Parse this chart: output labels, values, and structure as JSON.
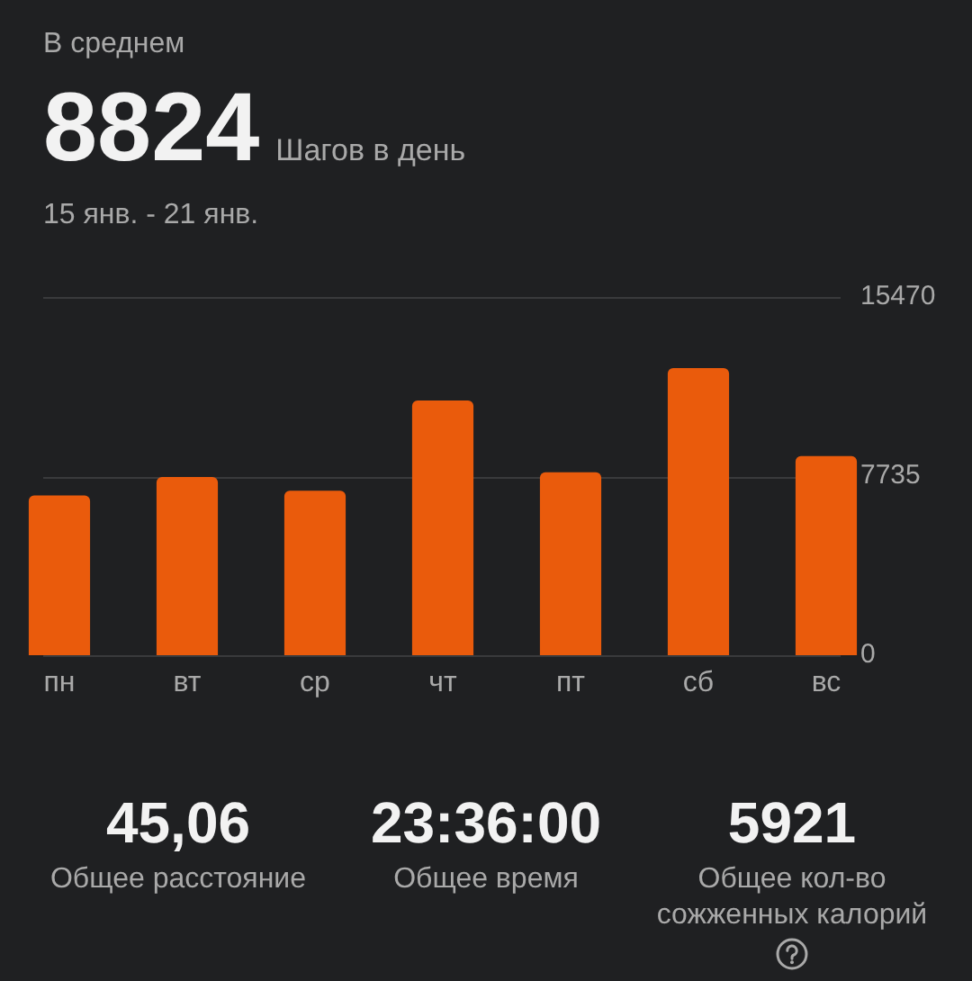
{
  "chart_data": {
    "type": "bar",
    "title": "В среднем",
    "subtitle": "15 янв. - 21 янв.",
    "annotations": [
      "8824",
      "Шагов в день",
      "45,06",
      "Общее расстояние",
      "23:36:00",
      "Общее время",
      "5921",
      "Общее кол-во сожженных калорий"
    ],
    "categories": [
      "пн",
      "вт",
      "ср",
      "чт",
      "пт",
      "сб",
      "вс"
    ],
    "values": [
      6900,
      7700,
      7100,
      11000,
      7900,
      12400,
      8600
    ],
    "color": "#ea5b0c",
    "ylim": [
      0,
      15470
    ],
    "yticks": [
      0,
      7735,
      15470
    ],
    "grid": "y",
    "legend": false
  }
}
